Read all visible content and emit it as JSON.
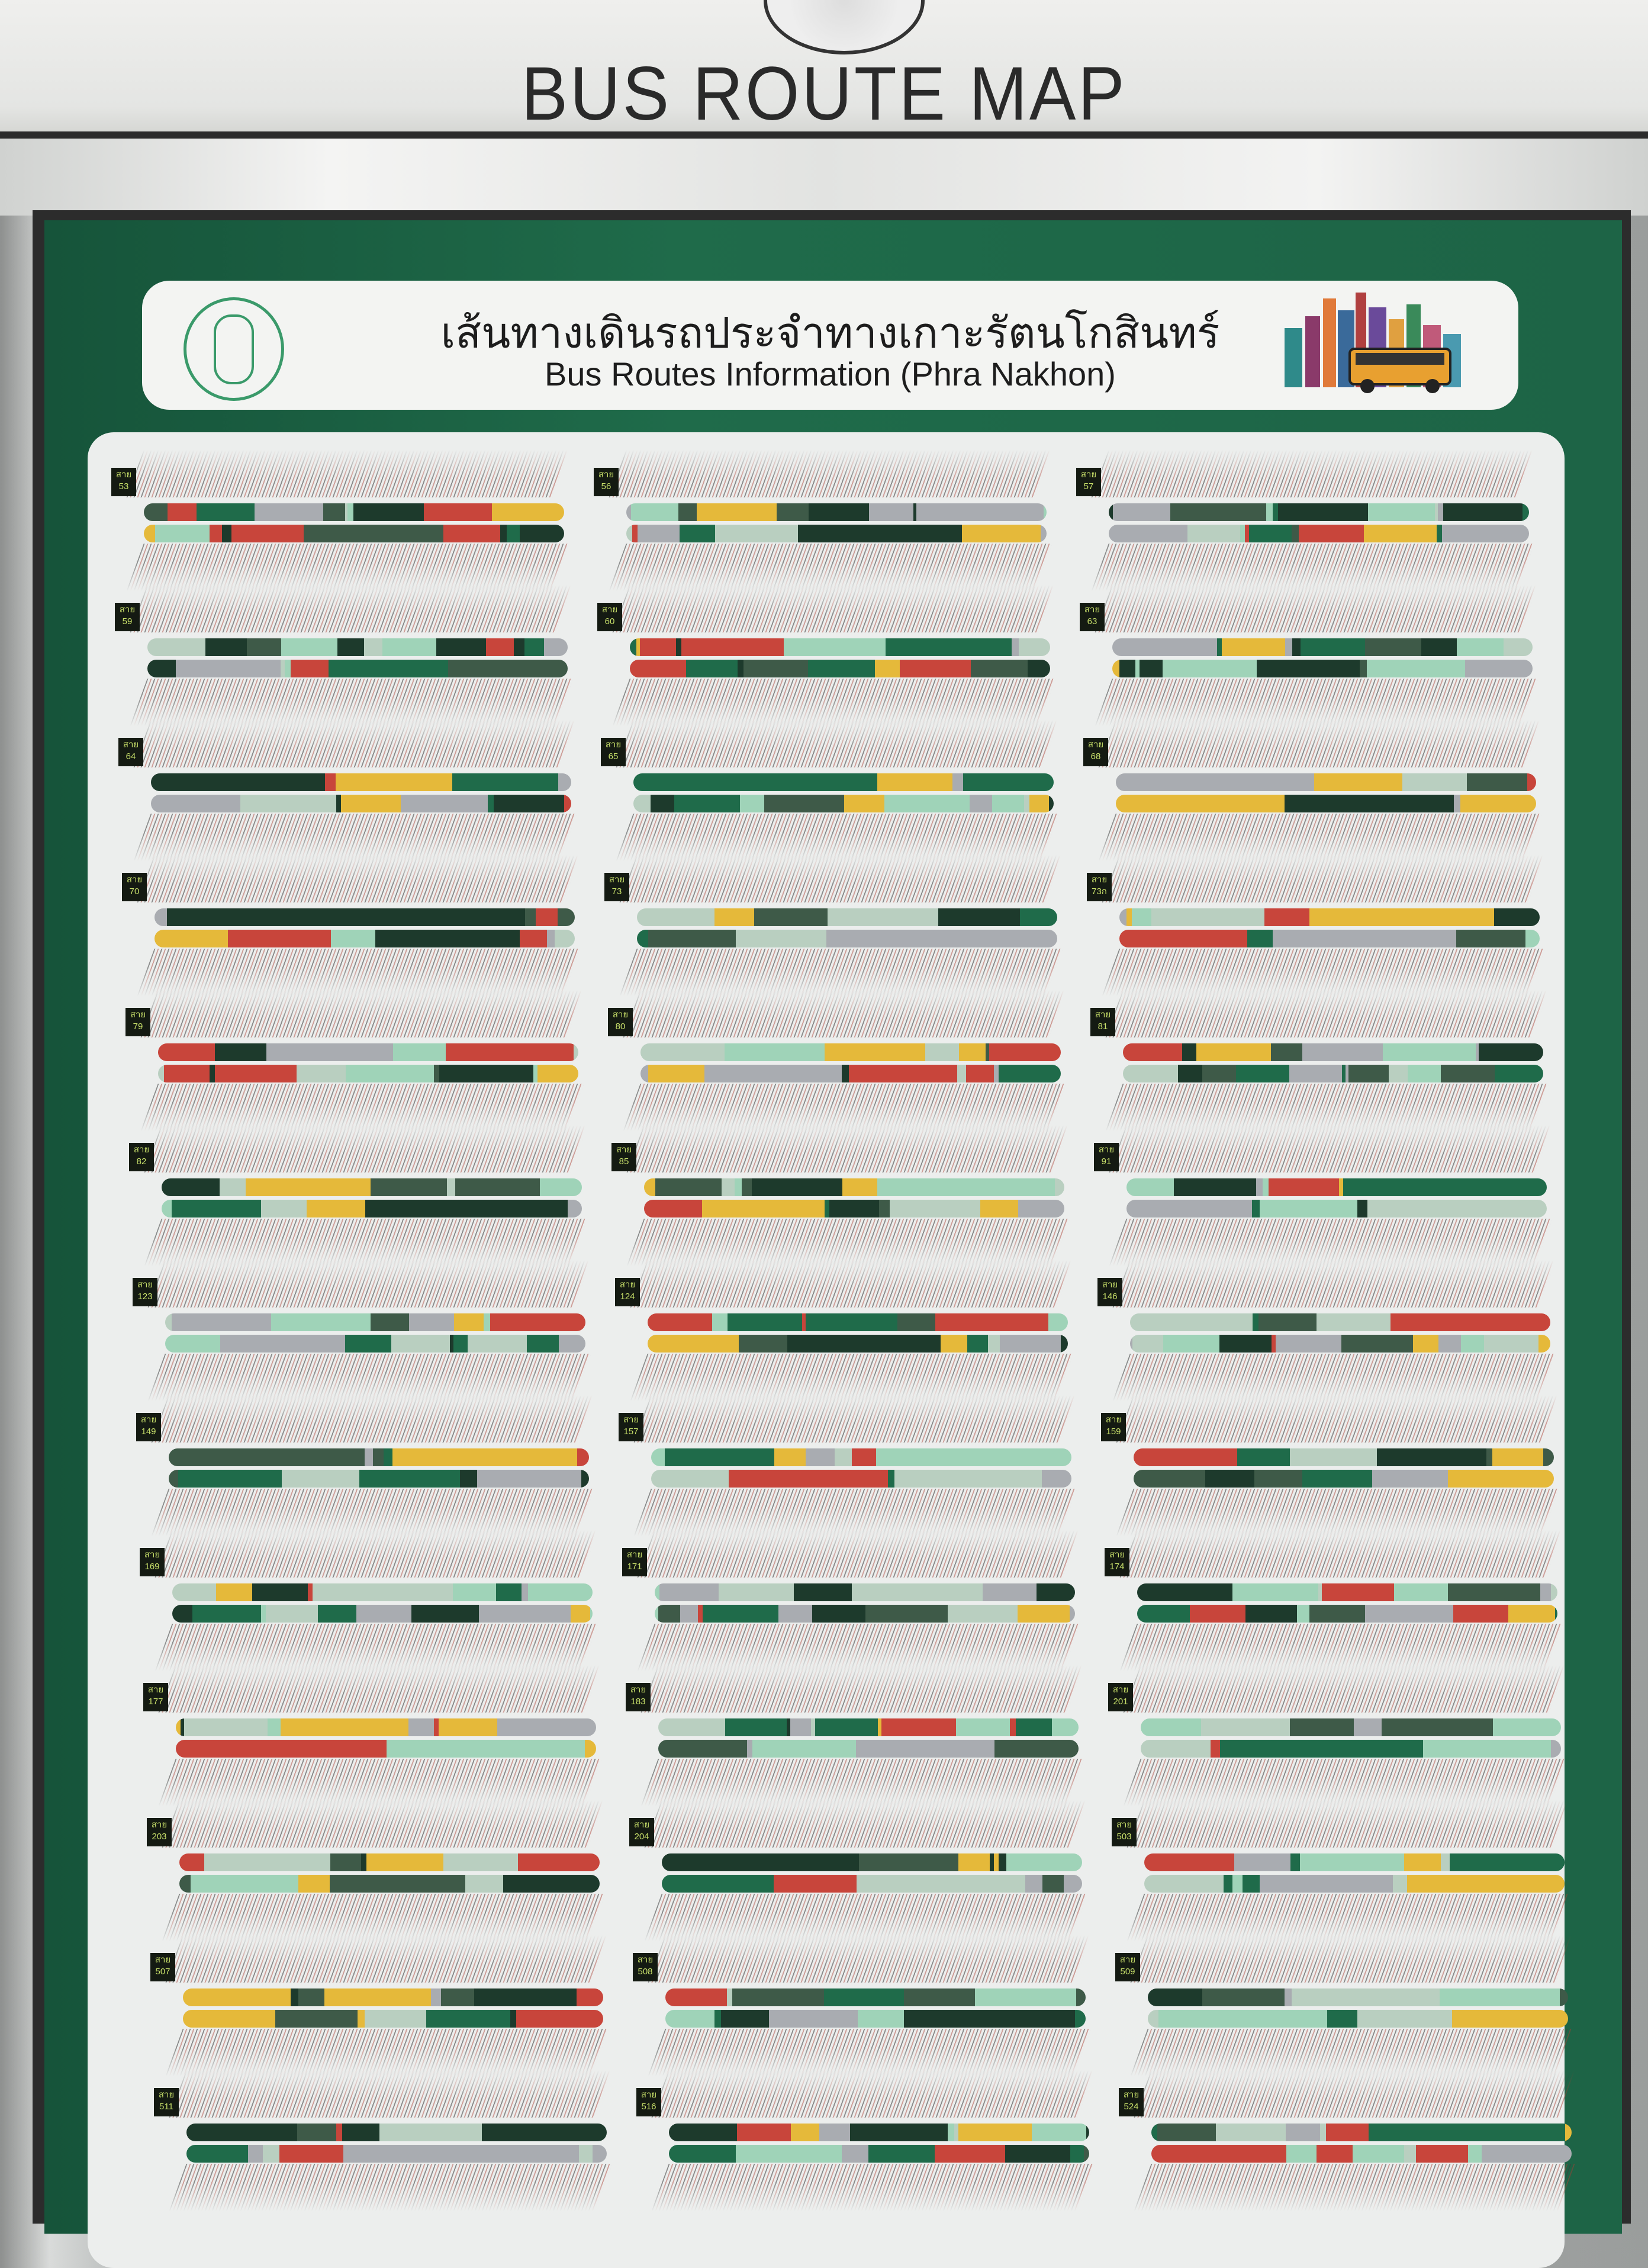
{
  "sign": {
    "title": "BUS ROUTE MAP"
  },
  "banner": {
    "title_th": "เส้นทางเดินรถประจำทางเกาะรัตนโกสินทร์",
    "title_en": "Bus Routes Information (Phra Nakhon)"
  },
  "route_prefix": "สาย",
  "routes": [
    "53",
    "56",
    "57",
    "59",
    "60",
    "63",
    "64",
    "65",
    "68",
    "70",
    "73",
    "73ก",
    "79",
    "80",
    "81",
    "82",
    "85",
    "91",
    "123",
    "124",
    "146",
    "149",
    "157",
    "159",
    "169",
    "171",
    "174",
    "177",
    "183",
    "201",
    "203",
    "204",
    "503",
    "507",
    "508",
    "509",
    "511",
    "516",
    "524"
  ],
  "colors": {
    "board_green": "#1f6b4a",
    "segment_palette": [
      "#1f6b4a",
      "#9fd3b8",
      "#b9cfc0",
      "#e5b93a",
      "#c8453b",
      "#a9acb1",
      "#1d3a2c",
      "#3e5a48"
    ],
    "badge_text": "#c8e06a"
  }
}
